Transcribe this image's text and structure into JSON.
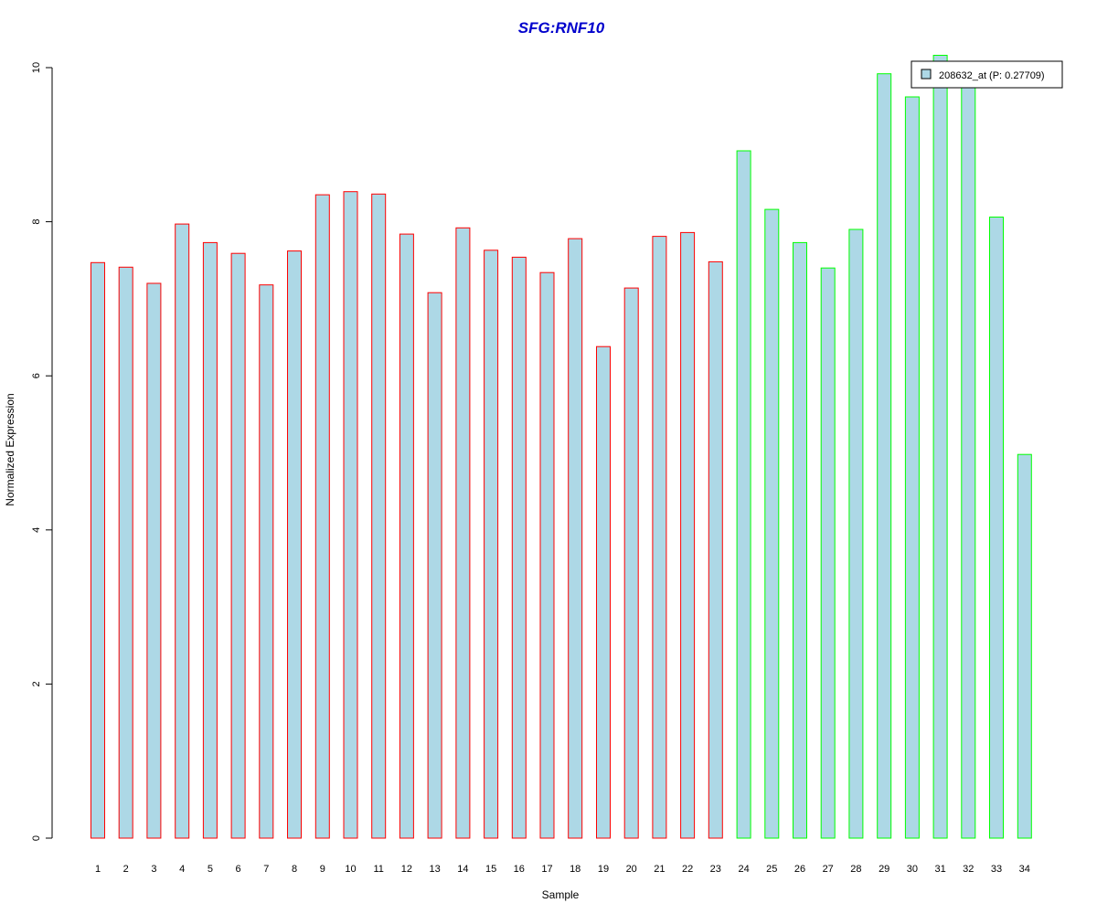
{
  "chart_data": {
    "type": "bar",
    "title": "SFG:RNF10",
    "xlabel": "Sample",
    "ylabel": "Normalized Expression",
    "ylim": [
      0,
      10
    ],
    "yticks": [
      0,
      2,
      4,
      6,
      8,
      10
    ],
    "categories": [
      "1",
      "2",
      "3",
      "4",
      "5",
      "6",
      "7",
      "8",
      "9",
      "10",
      "11",
      "12",
      "13",
      "14",
      "15",
      "16",
      "17",
      "18",
      "19",
      "20",
      "21",
      "22",
      "23",
      "24",
      "25",
      "26",
      "27",
      "28",
      "29",
      "30",
      "31",
      "32",
      "33",
      "34"
    ],
    "series": [
      {
        "name": "208632_at (P: 0.27709)",
        "values": [
          7.47,
          7.41,
          7.2,
          7.97,
          7.73,
          7.59,
          7.18,
          7.62,
          8.35,
          8.39,
          8.36,
          7.84,
          7.08,
          7.92,
          7.63,
          7.54,
          7.34,
          7.78,
          6.38,
          7.14,
          7.81,
          7.86,
          7.48,
          8.92,
          8.16,
          7.73,
          7.4,
          7.9,
          9.92,
          9.62,
          10.16,
          9.78,
          8.06,
          4.98
        ],
        "fill_color": "#add8e6"
      }
    ],
    "groups": [
      {
        "range": [
          1,
          23
        ],
        "border_color": "#ff0000"
      },
      {
        "range": [
          24,
          34
        ],
        "border_color": "#00ff00"
      }
    ],
    "title_color": "#0000cc",
    "legend_position": "top-right",
    "grid": false
  }
}
